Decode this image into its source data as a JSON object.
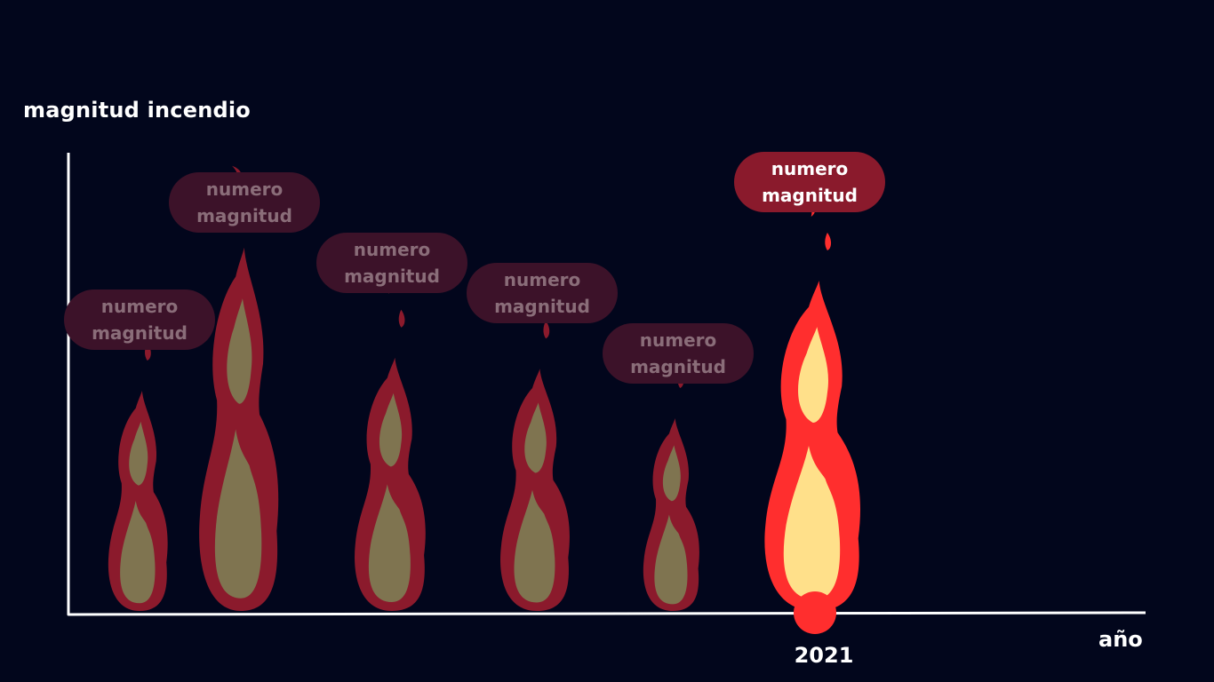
{
  "chart_data": {
    "type": "bar",
    "ylabel": "magnitud incendio",
    "xlabel": "año",
    "categories": [
      "",
      "",
      "",
      "",
      "",
      "2021"
    ],
    "values": [
      40,
      66,
      46,
      44,
      35,
      60
    ],
    "ylim": [
      0,
      100
    ],
    "bubbles": [
      {
        "line1": "numero",
        "line2": "magnitud"
      },
      {
        "line1": "numero",
        "line2": "magnitud"
      },
      {
        "line1": "numero",
        "line2": "magnitud"
      },
      {
        "line1": "numero",
        "line2": "magnitud"
      },
      {
        "line1": "numero",
        "line2": "magnitud"
      },
      {
        "line1": "numero",
        "line2": "magnitud"
      }
    ],
    "highlight_index": 5,
    "colors": {
      "background": "#02061c",
      "axis": "#ffffff",
      "flame_outer_muted": "#8b1a2c",
      "flame_inner_muted": "#7f7450",
      "flame_outer_highlight": "#ff2e2e",
      "flame_inner_highlight": "#ffe08a",
      "bubble_muted": "#3c1229",
      "bubble_highlight": "#8a1a2c"
    }
  }
}
